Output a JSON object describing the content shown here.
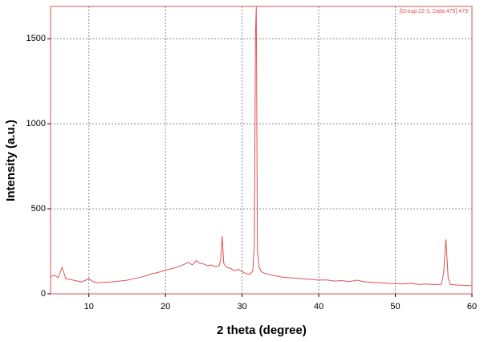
{
  "chart_data": {
    "type": "line",
    "xlabel": "2 theta (degree)",
    "ylabel": "Intensity (a.u.)",
    "annotation": "[Group:22-3, Data:479] 479",
    "x": [
      5,
      5.5,
      6,
      6.5,
      7,
      7.5,
      8,
      8.5,
      9,
      9.5,
      10,
      10.5,
      11,
      12,
      13,
      14,
      15,
      16,
      17,
      18,
      19,
      20,
      21,
      22,
      22.5,
      23,
      23.5,
      24,
      24.5,
      25,
      25.5,
      26,
      26.5,
      27,
      27.2,
      27.4,
      27.6,
      28,
      28.5,
      29,
      29.5,
      30,
      30.5,
      31,
      31.4,
      31.6,
      31.75,
      31.85,
      32,
      32.2,
      32.5,
      33,
      34,
      35,
      36,
      37,
      38,
      39,
      40,
      41,
      42,
      43,
      44,
      45,
      46,
      47,
      48,
      49,
      50,
      51,
      52,
      53,
      54,
      55,
      56,
      56.3,
      56.6,
      56.9,
      57.2,
      58,
      59,
      60
    ],
    "series": [
      {
        "color": "#e05050",
        "values": [
          100,
          110,
          95,
          155,
          90,
          85,
          80,
          75,
          70,
          78,
          90,
          72,
          65,
          68,
          70,
          75,
          80,
          90,
          100,
          115,
          125,
          140,
          150,
          165,
          175,
          185,
          170,
          195,
          180,
          175,
          165,
          170,
          160,
          165,
          200,
          340,
          180,
          155,
          150,
          135,
          145,
          130,
          120,
          115,
          135,
          300,
          1530,
          1690,
          250,
          160,
          130,
          120,
          110,
          100,
          95,
          92,
          88,
          85,
          80,
          82,
          75,
          78,
          72,
          80,
          70,
          68,
          65,
          62,
          60,
          58,
          62,
          55,
          58,
          54,
          56,
          120,
          320,
          90,
          55,
          52,
          50,
          48
        ]
      }
    ],
    "xlim": [
      5,
      60
    ],
    "ylim": [
      0,
      1690
    ],
    "xticks": [
      10,
      20,
      30,
      40,
      50,
      60
    ],
    "yticks": [
      0,
      500,
      1000,
      1500
    ],
    "grid": true
  }
}
